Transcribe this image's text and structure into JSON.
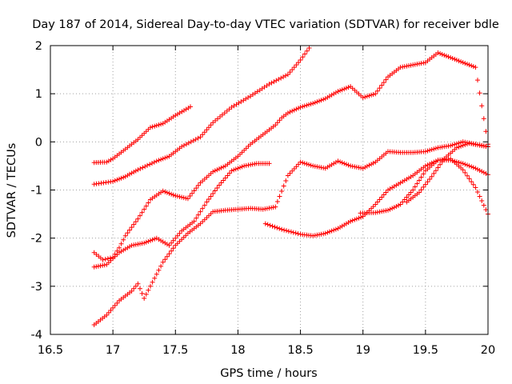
{
  "chart_data": {
    "type": "scatter",
    "title": "Day 187 of 2014, Sidereal Day-to-day VTEC variation (SDTVAR) for receiver bdle",
    "xlabel": "GPS time / hours",
    "ylabel": "SDTVAR / TECUs",
    "xlim": [
      16.5,
      20
    ],
    "ylim": [
      -4,
      2
    ],
    "xticks": [
      "16.5",
      "17",
      "17.5",
      "18",
      "18.5",
      "19",
      "19.5",
      "20"
    ],
    "yticks": [
      "-4",
      "-3",
      "-2",
      "-1",
      "0",
      "1",
      "2"
    ],
    "grid": true,
    "marker": "+",
    "color": "#ff0000",
    "series": [
      {
        "x": [
          16.85,
          16.95,
          17.0,
          17.1,
          17.2,
          17.3,
          17.4,
          17.5,
          17.62
        ],
        "y": [
          -0.43,
          -0.42,
          -0.35,
          -0.15,
          0.05,
          0.3,
          0.38,
          0.55,
          0.73
        ]
      },
      {
        "x": [
          16.85,
          17.0,
          17.1,
          17.2,
          17.35,
          17.45,
          17.55,
          17.7,
          17.8,
          17.95,
          18.1,
          18.25,
          18.4,
          18.5,
          18.57
        ],
        "y": [
          -0.88,
          -0.82,
          -0.72,
          -0.58,
          -0.4,
          -0.3,
          -0.1,
          0.1,
          0.4,
          0.72,
          0.95,
          1.2,
          1.4,
          1.7,
          1.95
        ]
      },
      {
        "x": [
          16.85,
          16.95,
          17.05,
          17.15,
          17.25,
          17.35,
          17.45,
          17.55,
          17.65,
          17.75,
          17.85,
          17.95,
          18.05,
          18.15,
          18.25
        ],
        "y": [
          -2.6,
          -2.55,
          -2.3,
          -2.15,
          -2.1,
          -2.0,
          -2.15,
          -1.85,
          -1.65,
          -1.25,
          -0.9,
          -0.6,
          -0.5,
          -0.45,
          -0.45
        ]
      },
      {
        "x": [
          16.85,
          16.92,
          17.0,
          17.05,
          17.1,
          17.2,
          17.3,
          17.4,
          17.5,
          17.6,
          17.7,
          17.8,
          17.9,
          18.0,
          18.1,
          18.2,
          18.3,
          18.35,
          18.4,
          18.5,
          18.6,
          18.7,
          18.8,
          18.9,
          19.0,
          19.1,
          19.2,
          19.3,
          19.4,
          19.5,
          19.6,
          19.7,
          19.8,
          19.9,
          20.0
        ],
        "y": [
          -2.3,
          -2.45,
          -2.4,
          -2.2,
          -1.95,
          -1.6,
          -1.2,
          -1.02,
          -1.12,
          -1.18,
          -0.85,
          -0.62,
          -0.5,
          -0.3,
          -0.05,
          0.15,
          0.35,
          0.5,
          0.6,
          0.72,
          0.8,
          0.9,
          1.05,
          1.15,
          0.92,
          1.0,
          1.35,
          1.55,
          1.6,
          1.65,
          1.85,
          1.75,
          1.65,
          1.55,
          -0.05
        ]
      },
      {
        "x": [
          16.85,
          16.95,
          17.05,
          17.15,
          17.2,
          17.25,
          17.3,
          17.4,
          17.5,
          17.6,
          17.7,
          17.8,
          17.9,
          18.0,
          18.1,
          18.2,
          18.3,
          18.4,
          18.5,
          18.6,
          18.7,
          18.8,
          18.9,
          19.0,
          19.1,
          19.2,
          19.3,
          19.4,
          19.5,
          19.6,
          19.7,
          19.8,
          19.9,
          20.0
        ],
        "y": [
          -3.8,
          -3.6,
          -3.3,
          -3.1,
          -2.95,
          -3.25,
          -3.0,
          -2.5,
          -2.15,
          -1.9,
          -1.7,
          -1.45,
          -1.42,
          -1.4,
          -1.38,
          -1.4,
          -1.35,
          -0.7,
          -0.42,
          -0.5,
          -0.55,
          -0.4,
          -0.5,
          -0.55,
          -0.42,
          -0.2,
          -0.22,
          -0.22,
          -0.2,
          -0.12,
          -0.08,
          0.0,
          -0.05,
          -0.1
        ]
      },
      {
        "x": [
          18.22,
          18.35,
          18.5,
          18.6,
          18.7,
          18.8,
          18.9,
          19.0,
          19.1,
          19.2,
          19.3,
          19.4,
          19.5,
          19.6,
          19.7,
          19.8,
          19.9,
          20.0
        ],
        "y": [
          -1.7,
          -1.82,
          -1.92,
          -1.95,
          -1.9,
          -1.8,
          -1.65,
          -1.55,
          -1.3,
          -1.0,
          -0.85,
          -0.7,
          -0.5,
          -0.38,
          -0.35,
          -0.58,
          -0.95,
          -1.5
        ]
      },
      {
        "x": [
          18.98,
          19.1,
          19.2,
          19.3,
          19.4,
          19.5,
          19.6,
          19.7,
          19.8,
          19.9,
          20.0
        ],
        "y": [
          -1.48,
          -1.47,
          -1.42,
          -1.3,
          -1.0,
          -0.6,
          -0.38,
          -0.38,
          -0.45,
          -0.55,
          -0.68
        ]
      },
      {
        "x": [
          19.35,
          19.45,
          19.55,
          19.65,
          19.75,
          19.85,
          19.95,
          20.0
        ],
        "y": [
          -1.25,
          -1.05,
          -0.72,
          -0.35,
          -0.12,
          -0.03,
          -0.08,
          -0.1
        ]
      }
    ]
  }
}
